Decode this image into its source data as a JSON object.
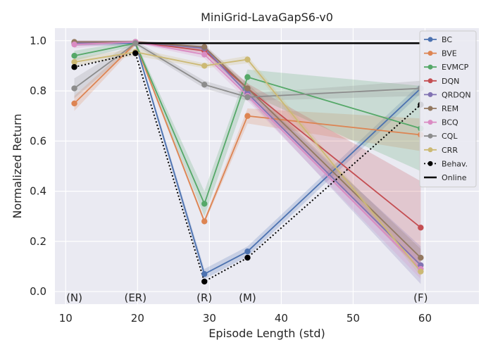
{
  "chart_data": {
    "type": "line",
    "title": "MiniGrid-LavaGapS6-v0",
    "xlabel": "Episode Length (std)",
    "ylabel": "Normalized Return",
    "xlim": [
      8.5,
      67.5
    ],
    "ylim": [
      -0.05,
      1.05
    ],
    "xticks": [
      10,
      20,
      30,
      40,
      50,
      60
    ],
    "yticks": [
      0.0,
      0.2,
      0.4,
      0.6,
      0.8,
      1.0
    ],
    "grid": true,
    "legend_position": "right",
    "x": [
      11.2,
      19.7,
      29.3,
      35.3,
      59.4
    ],
    "annotations": [
      {
        "text": "(N)",
        "x": 11.2
      },
      {
        "text": "(ER)",
        "x": 19.7
      },
      {
        "text": "(R)",
        "x": 29.3
      },
      {
        "text": "(M)",
        "x": 35.3
      },
      {
        "text": "(F)",
        "x": 59.4
      }
    ],
    "series": [
      {
        "name": "BC",
        "color": "#4c72b0",
        "values": [
          0.99,
          0.99,
          0.07,
          0.16,
          0.81
        ],
        "lower": [
          0.98,
          0.98,
          0.05,
          0.14,
          0.79
        ],
        "upper": [
          1.0,
          1.0,
          0.09,
          0.18,
          0.83
        ]
      },
      {
        "name": "BVE",
        "color": "#dd8452",
        "values": [
          0.75,
          0.99,
          0.28,
          0.7,
          0.625
        ],
        "lower": [
          0.72,
          0.98,
          0.27,
          0.67,
          0.56
        ],
        "upper": [
          0.78,
          1.0,
          0.29,
          0.73,
          0.69
        ]
      },
      {
        "name": "EVMCP",
        "color": "#55a868",
        "values": [
          0.94,
          0.99,
          0.35,
          0.855,
          0.65
        ],
        "lower": [
          0.92,
          0.98,
          0.3,
          0.79,
          0.48
        ],
        "upper": [
          0.96,
          1.0,
          0.4,
          0.885,
          0.82
        ]
      },
      {
        "name": "DQN",
        "color": "#c44e52",
        "values": [
          0.99,
          0.995,
          0.96,
          0.81,
          0.255
        ],
        "lower": [
          0.98,
          0.99,
          0.95,
          0.79,
          0.08
        ],
        "upper": [
          1.0,
          1.0,
          0.97,
          0.83,
          0.44
        ]
      },
      {
        "name": "QRDQN",
        "color": "#8172b3",
        "values": [
          0.99,
          0.995,
          0.97,
          0.79,
          0.105
        ],
        "lower": [
          0.98,
          0.99,
          0.96,
          0.77,
          0.03
        ],
        "upper": [
          1.0,
          1.0,
          0.98,
          0.81,
          0.18
        ]
      },
      {
        "name": "REM",
        "color": "#937860",
        "values": [
          0.995,
          0.995,
          0.975,
          0.81,
          0.135
        ],
        "lower": [
          0.99,
          0.99,
          0.965,
          0.79,
          0.1
        ],
        "upper": [
          1.0,
          1.0,
          0.985,
          0.83,
          0.17
        ]
      },
      {
        "name": "BCQ",
        "color": "#da8bc3",
        "values": [
          0.985,
          0.995,
          0.945,
          0.78,
          0.09
        ],
        "lower": [
          0.97,
          0.99,
          0.93,
          0.76,
          0.05
        ],
        "upper": [
          0.995,
          1.0,
          0.96,
          0.8,
          0.13
        ]
      },
      {
        "name": "CQL",
        "color": "#8c8c8c",
        "values": [
          0.81,
          0.99,
          0.825,
          0.775,
          0.81
        ],
        "lower": [
          0.77,
          0.98,
          0.81,
          0.76,
          0.78
        ],
        "upper": [
          0.85,
          1.0,
          0.84,
          0.79,
          0.84
        ]
      },
      {
        "name": "CRR",
        "color": "#ccb974",
        "values": [
          0.915,
          0.955,
          0.9,
          0.925,
          0.08
        ],
        "lower": [
          0.9,
          0.94,
          0.89,
          0.91,
          0.06
        ],
        "upper": [
          0.93,
          0.97,
          0.91,
          0.94,
          0.1
        ]
      },
      {
        "name": "Behav.",
        "color": "#000000",
        "style": "dotted",
        "values": [
          0.895,
          0.95,
          0.04,
          0.135,
          0.745
        ]
      },
      {
        "name": "Online",
        "color": "#000000",
        "style": "solid-flat",
        "value": 0.99
      }
    ]
  }
}
